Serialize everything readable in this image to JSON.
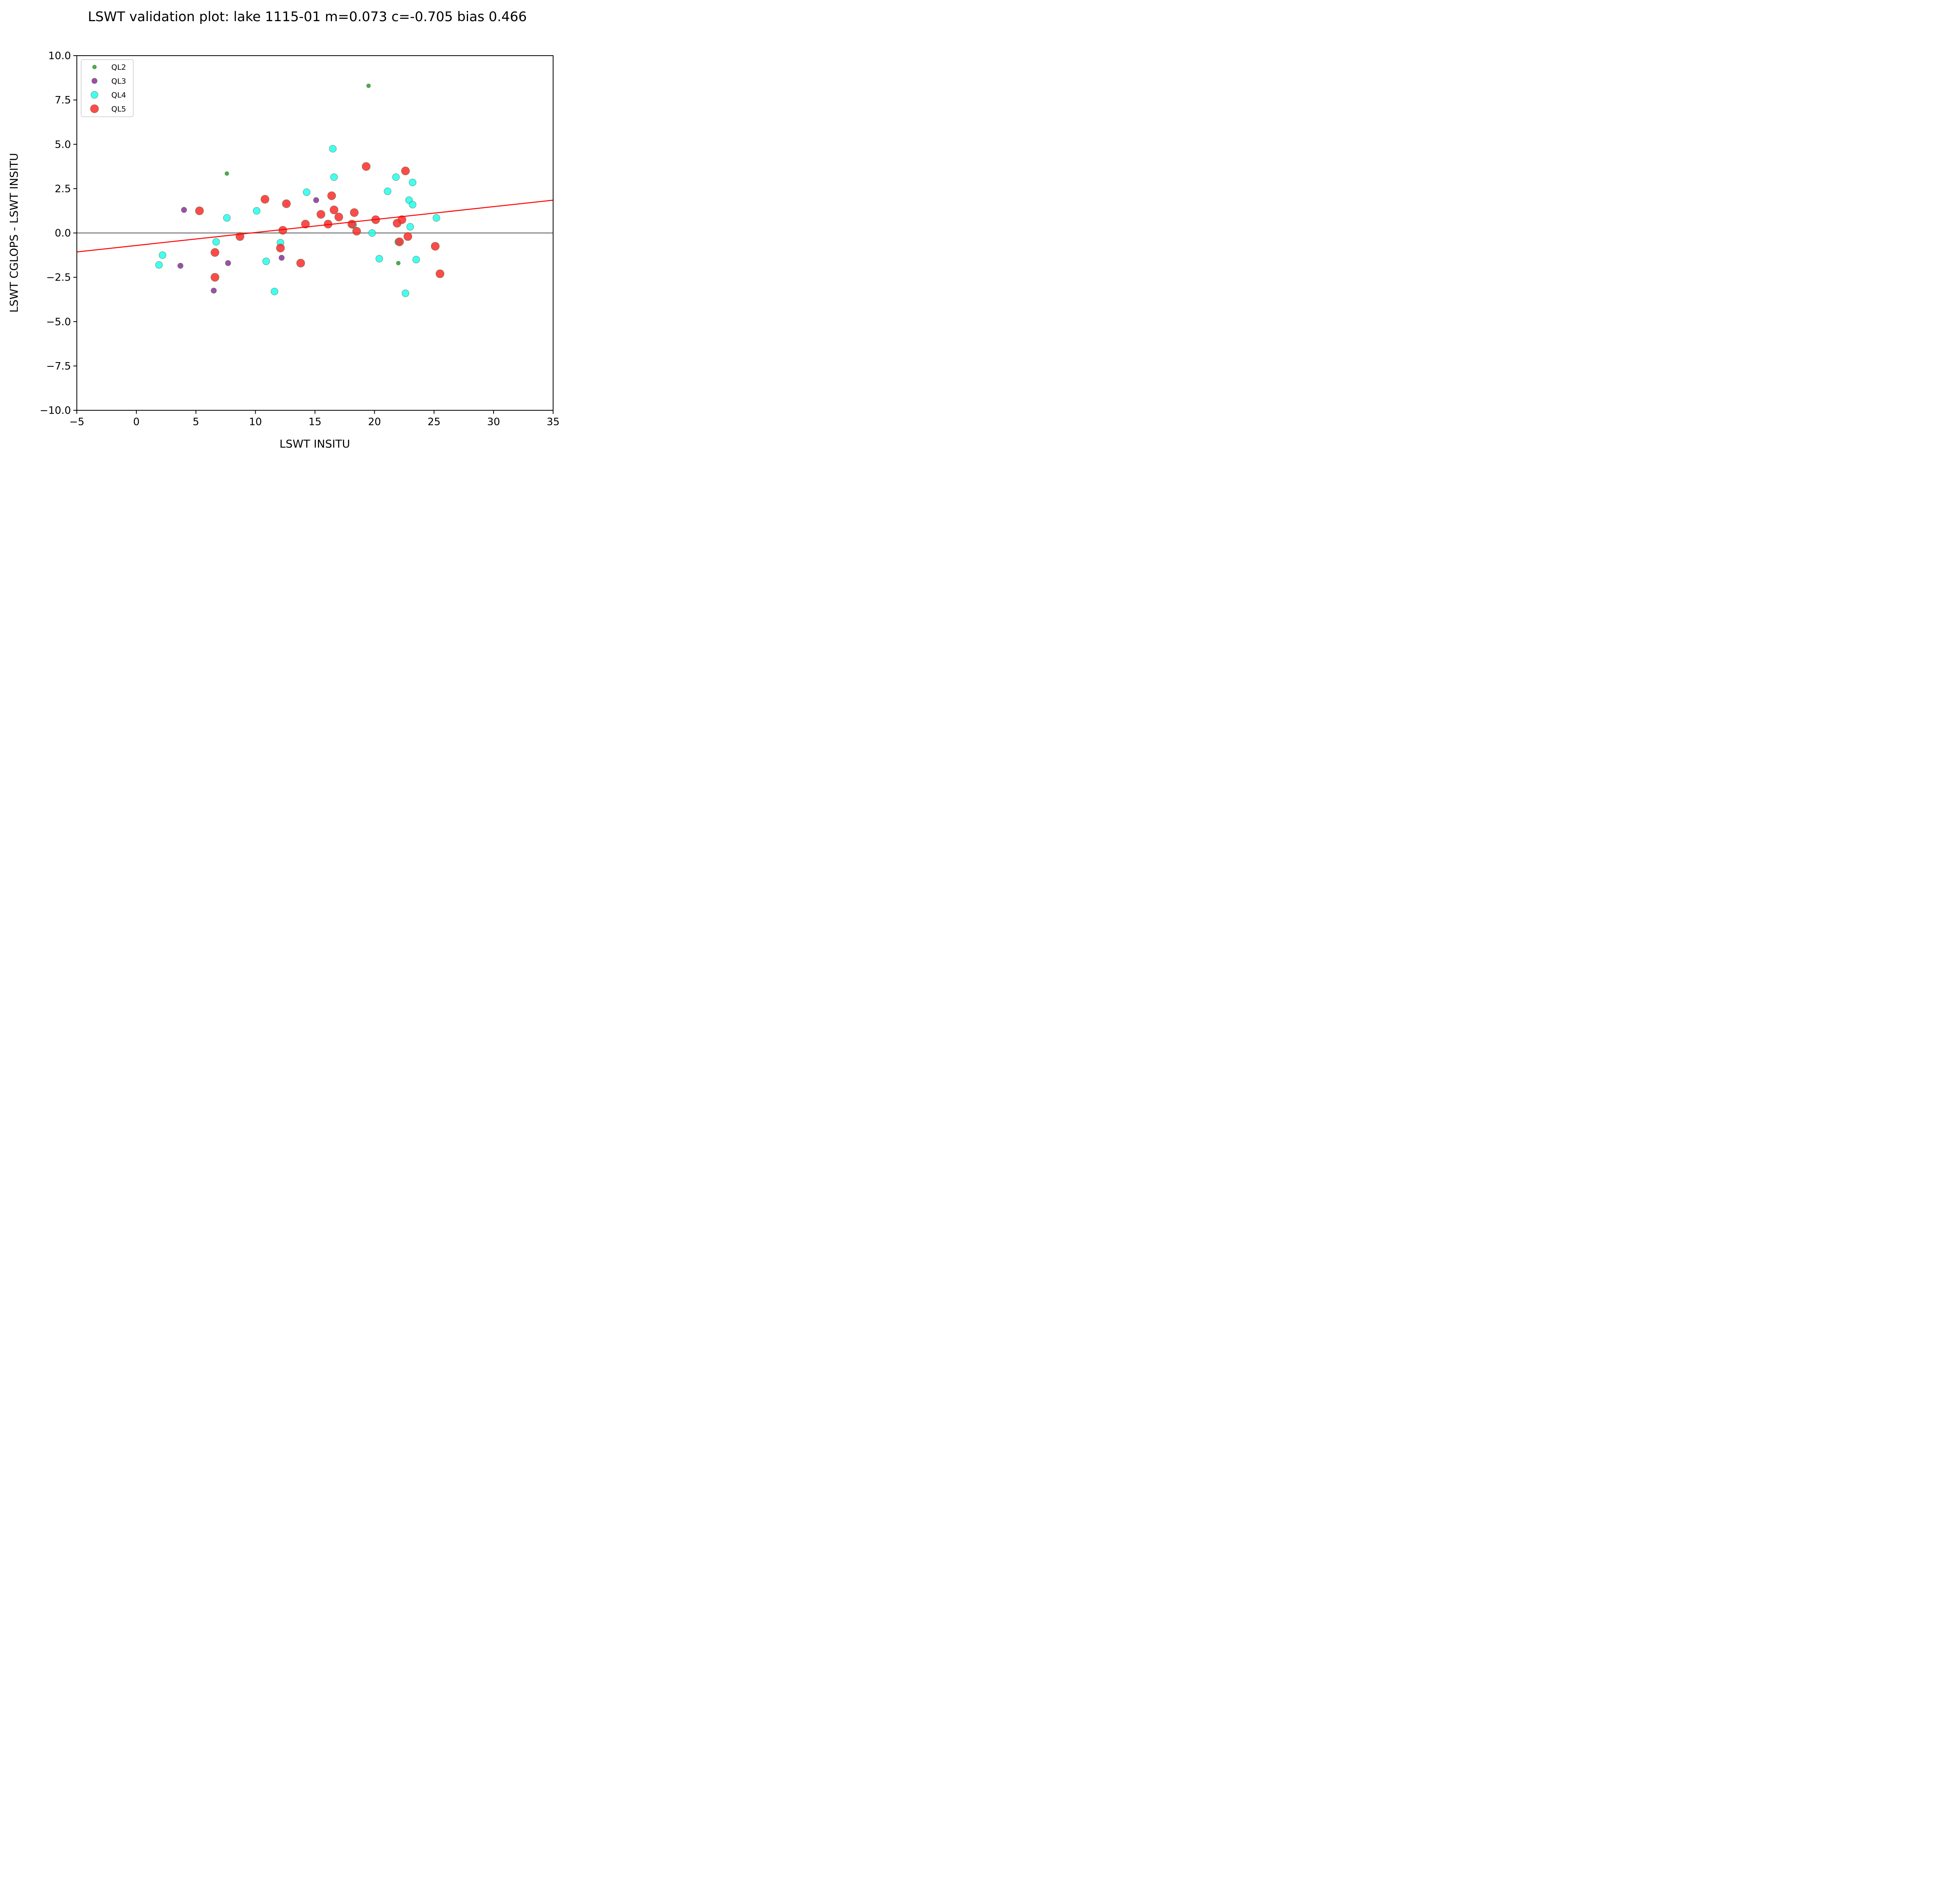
{
  "chart_data": {
    "type": "scatter",
    "title": "LSWT validation plot: lake 1115-01 m=0.073 c=-0.705 bias 0.466",
    "xlabel": "LSWT INSITU",
    "ylabel": "LSWT CGLOPS - LSWT INSITU",
    "xlim": [
      -5,
      35
    ],
    "ylim": [
      -10,
      10
    ],
    "xticks": [
      -5,
      0,
      5,
      10,
      15,
      20,
      25,
      30,
      35
    ],
    "xtick_labels": [
      "−5",
      "0",
      "5",
      "10",
      "15",
      "20",
      "25",
      "30",
      "35"
    ],
    "yticks": [
      -10,
      -7.5,
      -5,
      -2.5,
      0,
      2.5,
      5,
      7.5,
      10
    ],
    "ytick_labels": [
      "−10.0",
      "−7.5",
      "−5.0",
      "−2.5",
      "0.0",
      "2.5",
      "5.0",
      "7.5",
      "10.0"
    ],
    "grid": false,
    "legend_position": "top-left",
    "reference_line": {
      "y": 0,
      "color": "#666666"
    },
    "fit_line": {
      "slope": 0.073,
      "intercept": -0.705,
      "color": "#ff0000"
    },
    "series": [
      {
        "name": "QL2",
        "color": "#2ca02c",
        "marker_size": "small",
        "x": [
          19.5,
          7.6,
          22.0
        ],
        "y": [
          8.3,
          3.35,
          -1.7
        ]
      },
      {
        "name": "QL3",
        "color": "#8e2d9e",
        "marker_size": "medium",
        "x": [
          4.0,
          3.7,
          6.5,
          7.7,
          12.2,
          15.1
        ],
        "y": [
          1.3,
          -1.85,
          -3.25,
          -1.7,
          -1.4,
          1.85
        ]
      },
      {
        "name": "QL4",
        "color": "#22ffee",
        "marker_size": "large",
        "x": [
          1.9,
          2.2,
          6.7,
          7.6,
          10.1,
          10.9,
          11.6,
          12.1,
          14.3,
          16.5,
          16.6,
          18.2,
          19.8,
          20.4,
          21.1,
          21.8,
          22.0,
          22.6,
          22.9,
          23.0,
          23.2,
          23.2,
          23.5,
          25.2
        ],
        "y": [
          -1.8,
          -1.25,
          -0.5,
          0.85,
          1.25,
          -1.6,
          -3.3,
          -0.55,
          2.3,
          4.75,
          3.15,
          0.45,
          0.0,
          -1.45,
          2.35,
          3.15,
          -0.5,
          -3.4,
          1.85,
          0.35,
          2.85,
          1.6,
          -1.5,
          0.85
        ]
      },
      {
        "name": "QL5",
        "color": "#ff2a2a",
        "marker_size": "xlarge",
        "x": [
          5.3,
          6.6,
          6.6,
          8.7,
          10.8,
          12.1,
          12.3,
          12.6,
          13.8,
          14.2,
          15.5,
          16.1,
          16.4,
          16.6,
          17.0,
          18.1,
          18.3,
          18.5,
          19.3,
          20.1,
          21.9,
          22.1,
          22.3,
          22.6,
          22.8,
          25.1,
          25.5
        ],
        "y": [
          1.25,
          -1.1,
          -2.5,
          -0.2,
          1.9,
          -0.85,
          0.15,
          1.65,
          -1.7,
          0.5,
          1.05,
          0.5,
          2.1,
          1.3,
          0.9,
          0.5,
          1.15,
          0.1,
          3.75,
          0.75,
          0.55,
          -0.5,
          0.75,
          3.5,
          -0.2,
          -0.75,
          -2.3
        ]
      }
    ]
  }
}
